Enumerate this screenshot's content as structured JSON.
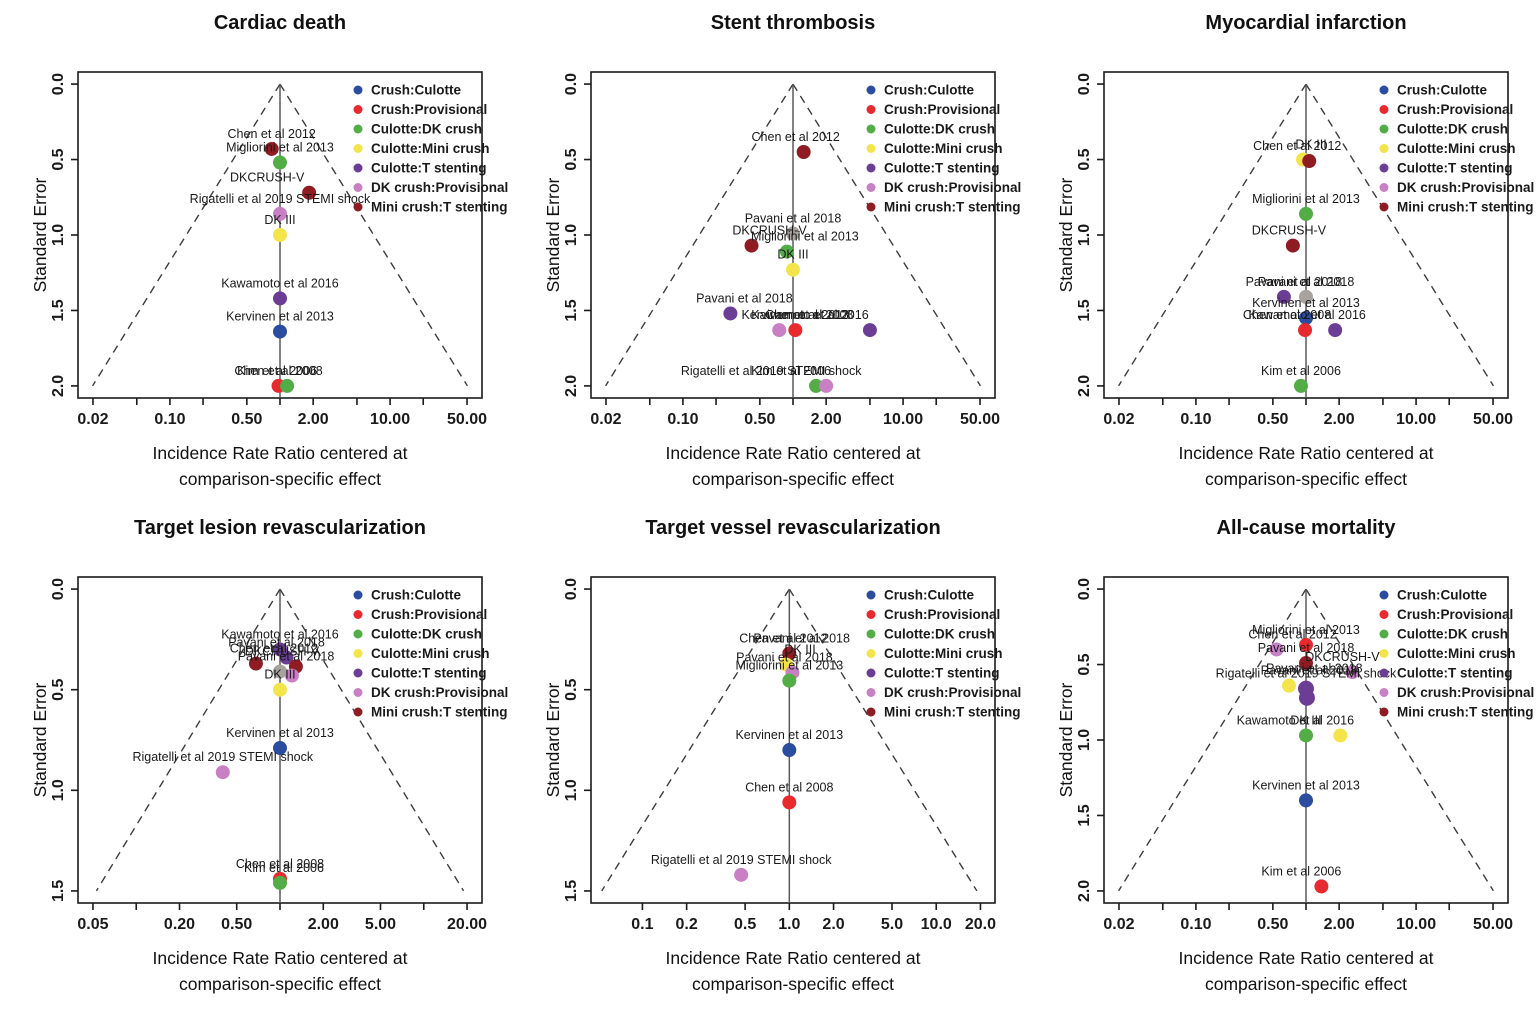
{
  "palette": {
    "blue": "#2a4da0",
    "red": "#e8292d",
    "green": "#53ad46",
    "yellow": "#f4e44b",
    "purple": "#6b3d95",
    "pink": "#c87fc4",
    "darkred": "#8e1c22",
    "gray": "#a8a39e"
  },
  "legend": {
    "entries": [
      {
        "label": "Crush:Culotte",
        "color": "blue"
      },
      {
        "label": "Crush:Provisional",
        "color": "red"
      },
      {
        "label": "Culotte:DK crush",
        "color": "green"
      },
      {
        "label": "Culotte:Mini crush",
        "color": "yellow"
      },
      {
        "label": "Culotte:T stenting",
        "color": "purple"
      },
      {
        "label": "DK crush:Provisional",
        "color": "pink"
      },
      {
        "label": "Mini crush:T stenting",
        "color": "darkred"
      }
    ]
  },
  "chart_data": [
    {
      "type": "scatter",
      "title": "Cardiac death",
      "ylabel": "Standard Error",
      "xlabel_line1": "Incidence Rate Ratio centered at",
      "xlabel_line2": "comparison-specific effect",
      "se_max": 2.0,
      "y_ticks": [
        "0.0",
        "0.5",
        "1.0",
        "1.5",
        "2.0"
      ],
      "xlog_range": [
        -1.835,
        1.835
      ],
      "funnel_z": 1.96,
      "x_ticks": [
        {
          "v": 0.02,
          "label": "0.02"
        },
        {
          "v": 0.05,
          "label": ""
        },
        {
          "v": 0.1,
          "label": "0.10"
        },
        {
          "v": 0.2,
          "label": ""
        },
        {
          "v": 0.5,
          "label": "0.50"
        },
        {
          "v": 1,
          "label": ""
        },
        {
          "v": 2,
          "label": "2.00"
        },
        {
          "v": 5,
          "label": ""
        },
        {
          "v": 10,
          "label": "10.00"
        },
        {
          "v": 20,
          "label": ""
        },
        {
          "v": 50,
          "label": "50.00"
        }
      ],
      "points": [
        {
          "label": "Chen et al 2012",
          "color": "darkred",
          "x": 0.84,
          "se": 0.43
        },
        {
          "label": "Migliorini et al 2013",
          "color": "green",
          "x": 1.0,
          "se": 0.52
        },
        {
          "label": "DKCRUSH-V",
          "color": "darkred",
          "x": 1.84,
          "se": 0.72,
          "dx": -42
        },
        {
          "label": "Rigatelli et al 2019 STEMI shock",
          "color": "pink",
          "x": 1.0,
          "se": 0.86
        },
        {
          "label": "DK III",
          "color": "yellow",
          "x": 1.0,
          "se": 1.0
        },
        {
          "label": "Kawamoto et al 2016",
          "color": "purple",
          "x": 1.0,
          "se": 1.42
        },
        {
          "label": "Kervinen et al 2013",
          "color": "blue",
          "x": 1.0,
          "se": 1.64
        },
        {
          "label": "Chen et al 2008",
          "color": "red",
          "x": 0.97,
          "se": 2.0
        },
        {
          "label": "Kim et al 2006",
          "color": "green",
          "x": 1.16,
          "se": 2.0,
          "dx": -10
        }
      ],
      "extra_labels": []
    },
    {
      "type": "scatter",
      "title": "Stent thrombosis",
      "ylabel": "Standard Error",
      "xlabel_line1": "Incidence Rate Ratio centered at",
      "xlabel_line2": "comparison-specific effect",
      "se_max": 2.0,
      "y_ticks": [
        "0.0",
        "0.5",
        "1.0",
        "1.5",
        "2.0"
      ],
      "xlog_range": [
        -1.835,
        1.835
      ],
      "funnel_z": 1.96,
      "x_ticks": [
        {
          "v": 0.02,
          "label": "0.02"
        },
        {
          "v": 0.05,
          "label": ""
        },
        {
          "v": 0.1,
          "label": "0.10"
        },
        {
          "v": 0.2,
          "label": ""
        },
        {
          "v": 0.5,
          "label": "0.50"
        },
        {
          "v": 1,
          "label": ""
        },
        {
          "v": 2,
          "label": "2.00"
        },
        {
          "v": 5,
          "label": ""
        },
        {
          "v": 10,
          "label": "10.00"
        },
        {
          "v": 20,
          "label": ""
        },
        {
          "v": 50,
          "label": "50.00"
        }
      ],
      "points": [
        {
          "label": "Chen et al 2012",
          "color": "darkred",
          "x": 1.25,
          "se": 0.45,
          "dx": -8
        },
        {
          "label": "Pavani et al 2018",
          "color": "gray",
          "x": 1.0,
          "se": 0.99
        },
        {
          "label": "DKCRUSH-V",
          "color": "darkred",
          "x": 0.42,
          "se": 1.07,
          "dx": 18
        },
        {
          "label": "Migliorini et al 2013",
          "color": "green",
          "x": 0.88,
          "se": 1.11,
          "dx": 18
        },
        {
          "label": "DK III",
          "color": "yellow",
          "x": 1.0,
          "se": 1.23
        },
        {
          "label": "Pavani et al 2018",
          "color": "purple",
          "x": 0.27,
          "se": 1.52,
          "dx": 14
        },
        {
          "label": "Chen et al 2008",
          "color": "pink",
          "x": 0.75,
          "se": 1.63,
          "dx": 30
        },
        {
          "label": "Kervinen et al 2013",
          "color": "red",
          "x": 1.05,
          "se": 1.63
        },
        {
          "label": "Kawamoto et al 2016",
          "color": "purple",
          "x": 5.0,
          "se": 1.63,
          "dx": -60
        },
        {
          "label": "Kim et al 2006",
          "color": "green",
          "x": 1.62,
          "se": 2.0,
          "dx": -25
        },
        {
          "label": "Rigatelli et al 2019 STEMI shock",
          "color": "pink",
          "x": 2.0,
          "se": 2.0,
          "dx": -55
        }
      ],
      "extra_labels": []
    },
    {
      "type": "scatter",
      "title": "Myocardial infarction",
      "ylabel": "Standard Error",
      "xlabel_line1": "Incidence Rate Ratio centered at",
      "xlabel_line2": "comparison-specific effect",
      "se_max": 2.0,
      "y_ticks": [
        "0.0",
        "0.5",
        "1.0",
        "1.5",
        "2.0"
      ],
      "xlog_range": [
        -1.835,
        1.835
      ],
      "funnel_z": 1.96,
      "x_ticks": [
        {
          "v": 0.02,
          "label": "0.02"
        },
        {
          "v": 0.05,
          "label": ""
        },
        {
          "v": 0.1,
          "label": "0.10"
        },
        {
          "v": 0.2,
          "label": ""
        },
        {
          "v": 0.5,
          "label": "0.50"
        },
        {
          "v": 1,
          "label": ""
        },
        {
          "v": 2,
          "label": "2.00"
        },
        {
          "v": 5,
          "label": ""
        },
        {
          "v": 10,
          "label": "10.00"
        },
        {
          "v": 20,
          "label": ""
        },
        {
          "v": 50,
          "label": "50.00"
        }
      ],
      "points": [
        {
          "label": "DK III",
          "color": "yellow",
          "x": 0.94,
          "se": 0.5,
          "dx": 8
        },
        {
          "label": "Chen et al 2012",
          "color": "darkred",
          "x": 1.07,
          "se": 0.51,
          "dx": -12
        },
        {
          "label": "Migliorini et al 2013",
          "color": "green",
          "x": 1.0,
          "se": 0.86
        },
        {
          "label": "DKCRUSH-V",
          "color": "darkred",
          "x": 0.76,
          "se": 1.07,
          "dx": -4
        },
        {
          "label": "Pavani et al 2018",
          "color": "purple",
          "x": 0.63,
          "se": 1.41,
          "dx": 10
        },
        {
          "label": "Pavani et al 2018",
          "color": "gray",
          "x": 1.0,
          "se": 1.41
        },
        {
          "label": "Kervinen et al 2013",
          "color": "blue",
          "x": 1.0,
          "se": 1.55
        },
        {
          "label": "Chen et al 2008",
          "color": "red",
          "x": 0.98,
          "se": 1.63,
          "dx": -18
        },
        {
          "label": "Kawamoto et al 2016",
          "color": "purple",
          "x": 1.84,
          "se": 1.63,
          "dx": -28
        },
        {
          "label": "Kim et al 2006",
          "color": "green",
          "x": 0.9,
          "se": 2.0
        }
      ],
      "extra_labels": []
    },
    {
      "type": "scatter",
      "title": "Target lesion revascularization",
      "ylabel": "Standard Error",
      "xlabel_line1": "Incidence Rate Ratio centered at",
      "xlabel_line2": "comparison-specific effect",
      "se_max": 1.5,
      "y_ticks": [
        "0.0",
        "0.5",
        "1.0",
        "1.5"
      ],
      "xlog_range": [
        -1.405,
        1.405
      ],
      "funnel_z": 1.96,
      "x_ticks": [
        {
          "v": 0.05,
          "label": "0.05"
        },
        {
          "v": 0.1,
          "label": ""
        },
        {
          "v": 0.2,
          "label": "0.20"
        },
        {
          "v": 0.5,
          "label": "0.50"
        },
        {
          "v": 1,
          "label": ""
        },
        {
          "v": 2,
          "label": "2.00"
        },
        {
          "v": 5,
          "label": "5.00"
        },
        {
          "v": 10,
          "label": ""
        },
        {
          "v": 20,
          "label": "20.00"
        }
      ],
      "points": [
        {
          "label": "Kawamoto et al 2016",
          "color": "purple",
          "x": 1.0,
          "se": 0.3
        },
        {
          "label": "Pavani et al 2018",
          "color": "purple",
          "x": 1.11,
          "se": 0.34,
          "dx": -10
        },
        {
          "label": "Chen et al 2012",
          "color": "darkred",
          "x": 0.68,
          "se": 0.37,
          "dx": 18
        },
        {
          "label": "DKCRUSH-V",
          "color": "darkred",
          "x": 1.29,
          "se": 0.385,
          "dx": -14
        },
        {
          "label": "Pavani et al 2018",
          "color": "gray",
          "x": 1.0,
          "se": 0.41,
          "dx": 6
        },
        {
          "label": "",
          "color": "pink",
          "x": 1.21,
          "se": 0.43
        },
        {
          "label": "DK III",
          "color": "yellow",
          "x": 1.0,
          "se": 0.5
        },
        {
          "label": "Kervinen et al 2013",
          "color": "blue",
          "x": 1.0,
          "se": 0.79
        },
        {
          "label": "Rigatelli et al 2019 STEMI shock",
          "color": "pink",
          "x": 0.4,
          "se": 0.91
        },
        {
          "label": "Chen et al 2008",
          "color": "red",
          "x": 1.0,
          "se": 1.44
        },
        {
          "label": "Kim et al 2006",
          "color": "green",
          "x": 1.0,
          "se": 1.46,
          "dx": 4
        }
      ],
      "extra_labels": []
    },
    {
      "type": "scatter",
      "title": "Target vessel revascularization",
      "ylabel": "Standard Error",
      "xlabel_line1": "Incidence Rate Ratio centered at",
      "xlabel_line2": "comparison-specific effect",
      "se_max": 1.5,
      "y_ticks": [
        "0.0",
        "0.5",
        "1.0",
        "1.5"
      ],
      "xlog_range": [
        -1.35,
        1.4
      ],
      "funnel_z": 1.96,
      "x_ticks": [
        {
          "v": 0.1,
          "label": "0.1"
        },
        {
          "v": 0.2,
          "label": "0.2"
        },
        {
          "v": 0.5,
          "label": "0.5"
        },
        {
          "v": 1,
          "label": "1.0"
        },
        {
          "v": 2,
          "label": "2.0"
        },
        {
          "v": 5,
          "label": "5.0"
        },
        {
          "v": 10,
          "label": "10.0"
        },
        {
          "v": 20,
          "label": "20.0"
        }
      ],
      "points": [
        {
          "label": "Chen et al 2012",
          "color": "darkred",
          "x": 1.0,
          "se": 0.32,
          "dx": -6
        },
        {
          "label": "DK III",
          "color": "yellow",
          "x": 0.95,
          "se": 0.375,
          "dx": 14
        },
        {
          "label": "Pavani et al 2018",
          "color": "pink",
          "x": 1.05,
          "se": 0.415,
          "dx": -8
        },
        {
          "label": "Migliorini et al 2013",
          "color": "green",
          "x": 1.0,
          "se": 0.455
        },
        {
          "label": "Kervinen et al 2013",
          "color": "blue",
          "x": 1.0,
          "se": 0.8
        },
        {
          "label": "Chen et al 2008",
          "color": "red",
          "x": 1.0,
          "se": 1.06
        },
        {
          "label": "Rigatelli et al 2019 STEMI shock",
          "color": "pink",
          "x": 0.47,
          "se": 1.42
        }
      ],
      "extra_labels": [
        {
          "text": "Pavani et al 2018",
          "x": 1.07,
          "se": 0.32,
          "dx": 8
        }
      ]
    },
    {
      "type": "scatter",
      "title": "All-cause mortality",
      "ylabel": "Standard Error",
      "xlabel_line1": "Incidence Rate Ratio centered at",
      "xlabel_line2": "comparison-specific effect",
      "se_max": 2.0,
      "y_ticks": [
        "0.0",
        "0.5",
        "1.0",
        "1.5",
        "2.0"
      ],
      "xlog_range": [
        -1.835,
        1.835
      ],
      "funnel_z": 1.96,
      "x_ticks": [
        {
          "v": 0.02,
          "label": "0.02"
        },
        {
          "v": 0.05,
          "label": ""
        },
        {
          "v": 0.1,
          "label": "0.10"
        },
        {
          "v": 0.2,
          "label": ""
        },
        {
          "v": 0.5,
          "label": "0.50"
        },
        {
          "v": 1,
          "label": ""
        },
        {
          "v": 2,
          "label": "2.00"
        },
        {
          "v": 5,
          "label": ""
        },
        {
          "v": 10,
          "label": "10.00"
        },
        {
          "v": 20,
          "label": ""
        },
        {
          "v": 50,
          "label": "50.00"
        }
      ],
      "points": [
        {
          "label": "Migliorini et al 2013",
          "color": "red",
          "x": 1.0,
          "se": 0.37
        },
        {
          "label": "Chen et al 2012",
          "color": "pink",
          "x": 0.54,
          "se": 0.4,
          "dx": 16
        },
        {
          "label": "Pavani et al 2018",
          "color": "darkred",
          "x": 1.0,
          "se": 0.49
        },
        {
          "label": "DKCRUSH-V",
          "color": "pink",
          "x": 2.64,
          "se": 0.55,
          "dx": -10
        },
        {
          "label": "Pavani et al 2018",
          "color": "yellow",
          "x": 0.7,
          "se": 0.64,
          "dx": 20
        },
        {
          "label": "Rigatelli et al 2019 STEMI shock",
          "color": "purple",
          "x": 1.0,
          "se": 0.66,
          "r": 8
        },
        {
          "label": "",
          "color": "purple",
          "x": 1.02,
          "se": 0.72,
          "r": 8
        },
        {
          "label": "DK III",
          "color": "green",
          "x": 1.0,
          "se": 0.97
        },
        {
          "label": "Kawamoto et al 2016",
          "color": "yellow",
          "x": 2.05,
          "se": 0.97,
          "dx": -45
        },
        {
          "label": "Kervinen et al 2013",
          "color": "blue",
          "x": 1.0,
          "se": 1.4
        },
        {
          "label": "Kim et al 2006",
          "color": "red",
          "x": 1.38,
          "se": 1.97,
          "dx": -20
        }
      ],
      "extra_labels": [
        {
          "text": "Pavani et al 2018",
          "x": 1.05,
          "se": 0.625,
          "dx": 6
        }
      ]
    }
  ]
}
